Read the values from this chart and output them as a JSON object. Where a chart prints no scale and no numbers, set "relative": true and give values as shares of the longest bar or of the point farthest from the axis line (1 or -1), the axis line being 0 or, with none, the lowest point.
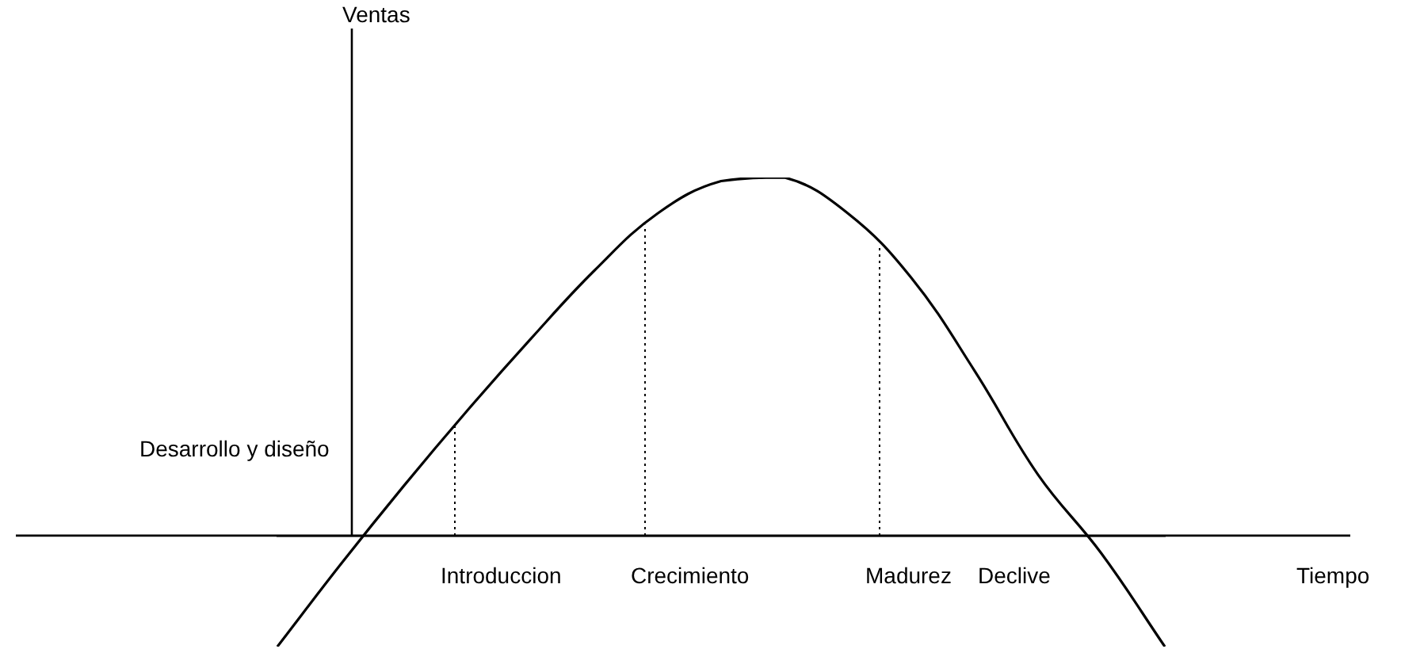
{
  "chart_data": {
    "type": "line",
    "relative": true,
    "categories": [
      null,
      null,
      null,
      null,
      null,
      null,
      null,
      null,
      null,
      null,
      null,
      null,
      null,
      null,
      null
    ],
    "series": [
      {
        "color": "#000000",
        "values": [
          -0.31,
          -0.08,
          0.14,
          0.35,
          0.55,
          0.74,
          0.9,
          0.99,
          1,
          0.9,
          0.72,
          0.46,
          0.17,
          -0.05,
          -0.31
        ]
      }
    ],
    "annotations": [
      "Ventas",
      "Desarrollo y diseño",
      "Introduccion",
      "Crecimiento",
      "Madurez",
      "Declive",
      "Tiempo"
    ],
    "marker": "none",
    "line_style": "solid"
  }
}
